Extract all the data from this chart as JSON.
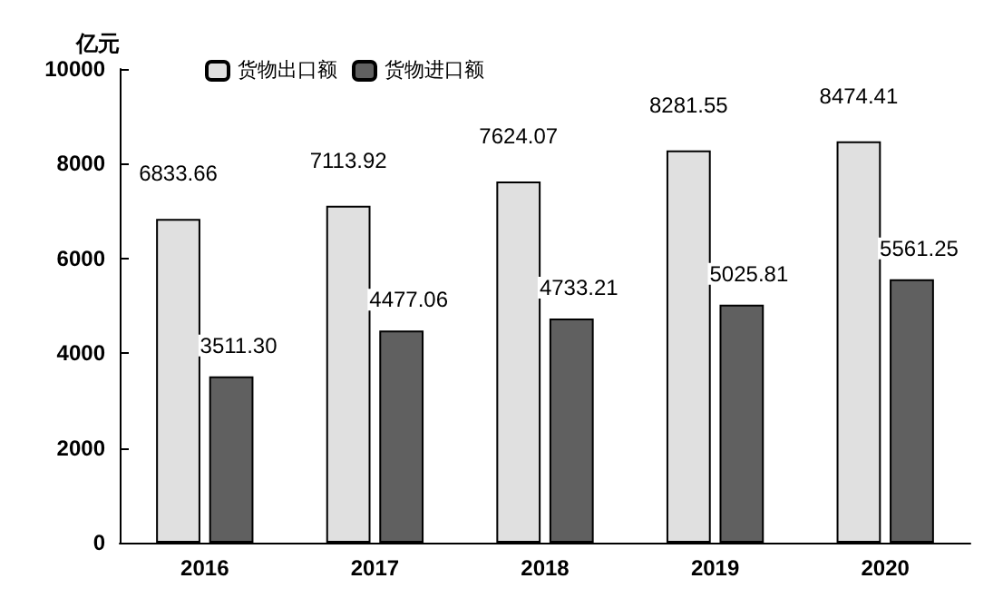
{
  "chart_data": {
    "type": "bar",
    "ylabel": "亿元",
    "categories": [
      "2016",
      "2017",
      "2018",
      "2019",
      "2020"
    ],
    "series": [
      {
        "name": "货物出口额",
        "color": "#e0e0e0",
        "values": [
          6833.66,
          7113.92,
          7624.07,
          8281.55,
          8474.41
        ],
        "value_labels": [
          "6833.66",
          "7113.92",
          "7624.07",
          "8281.55",
          "8474.41"
        ]
      },
      {
        "name": "货物进口额",
        "color": "#606060",
        "values": [
          3511.3,
          4477.06,
          4733.21,
          5025.81,
          5561.25
        ],
        "value_labels": [
          "3511.30",
          "4477.06",
          "4733.21",
          "5025.81",
          "5561.25"
        ]
      }
    ],
    "ylim": [
      0,
      10000
    ],
    "yticks": [
      0,
      2000,
      4000,
      6000,
      8000,
      10000
    ],
    "grid": false,
    "legend": "top left"
  }
}
